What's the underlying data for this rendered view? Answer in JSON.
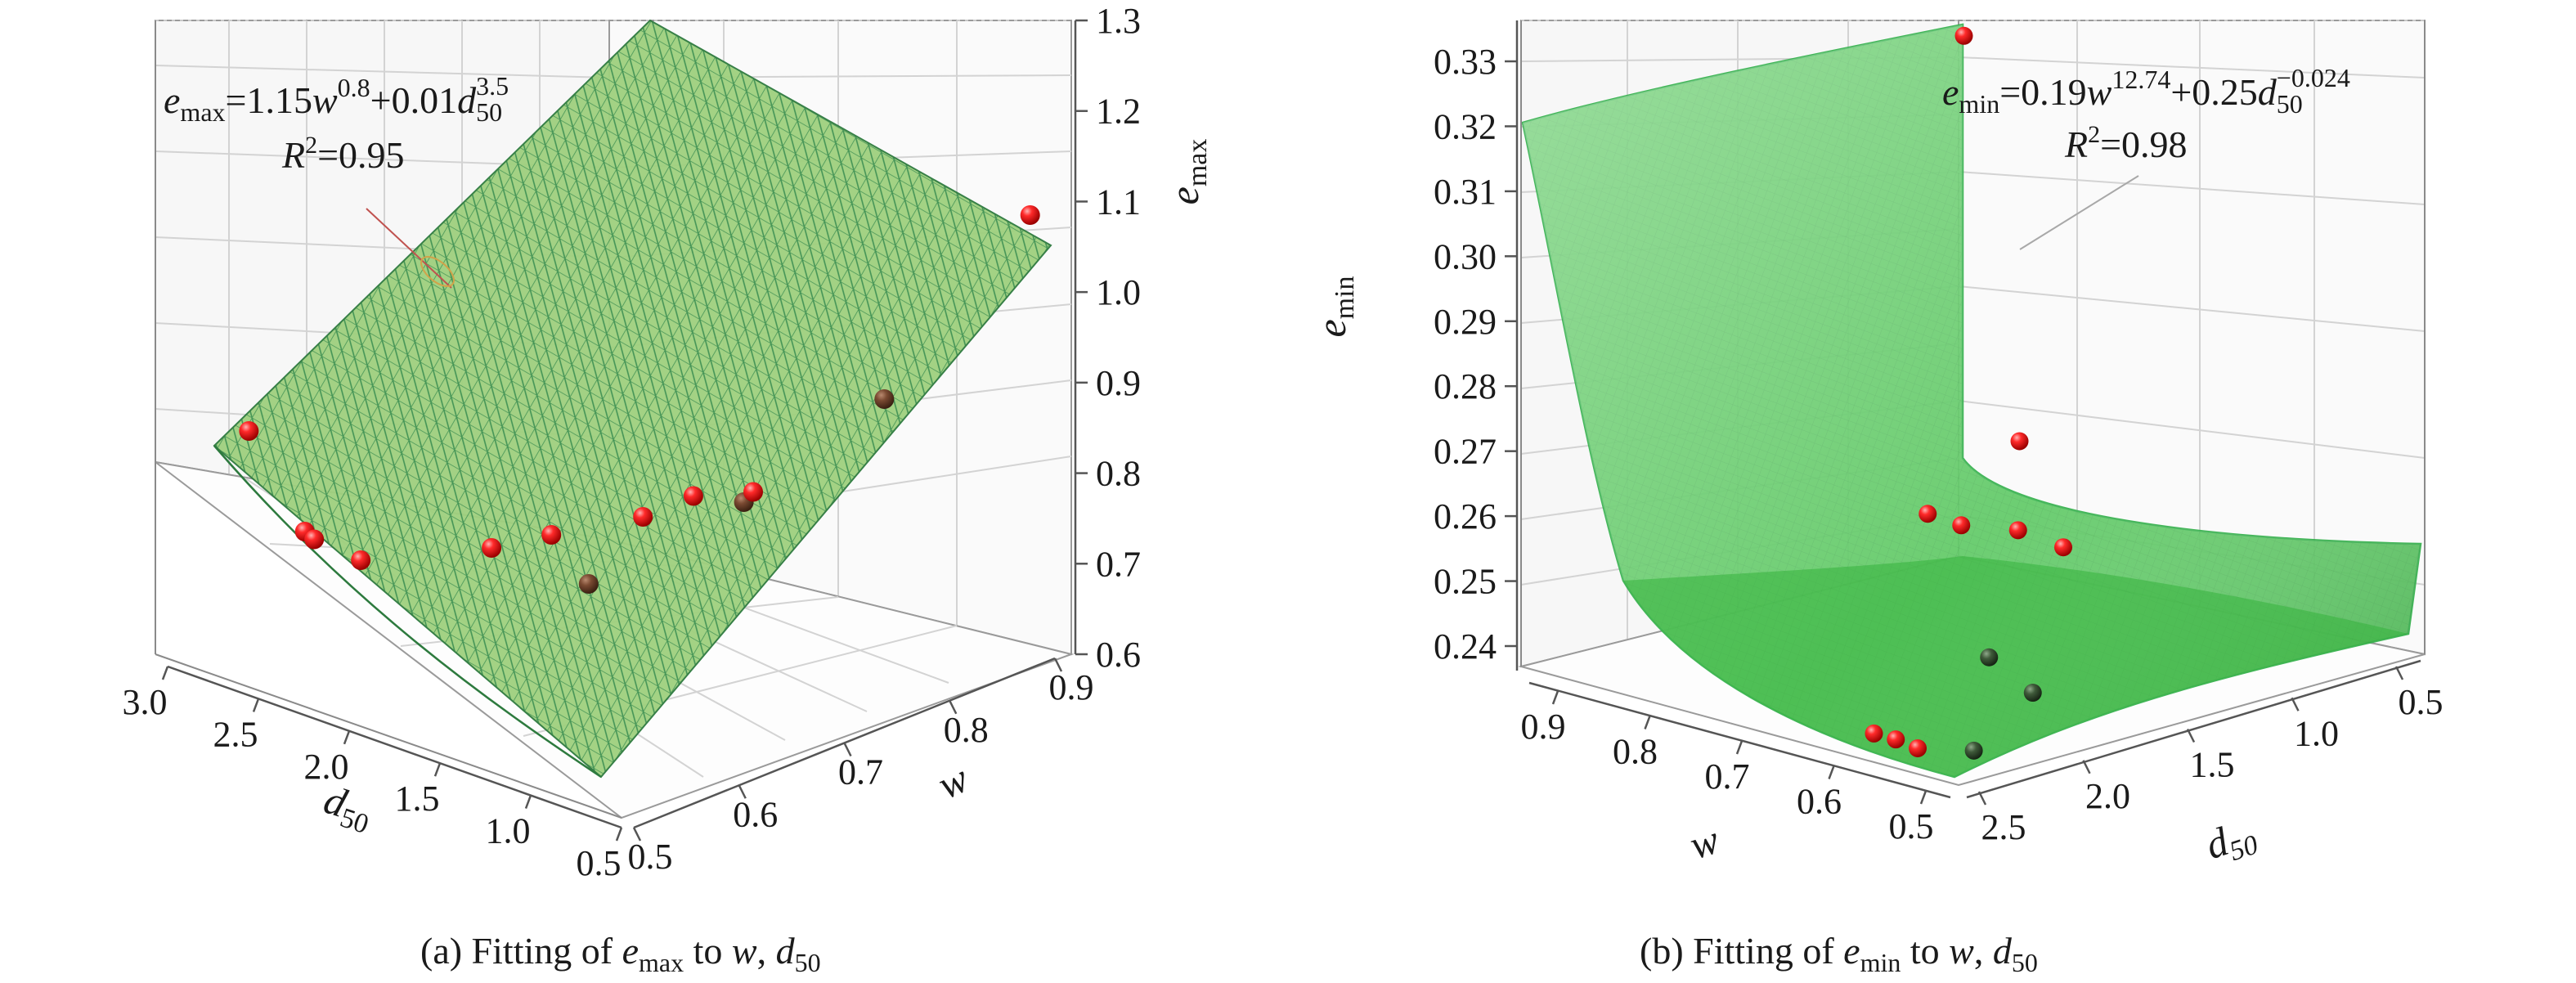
{
  "chart_data": [
    {
      "type": "scatter",
      "panel": "a",
      "caption": "(a) Fitting of e_max to w, d_50",
      "zlabel": "e_max",
      "xlabel": "d_50",
      "ylabel": "w",
      "equation": "e_max=1.15w^0.8+0.01d_50^3.5",
      "r2": "R²=0.95",
      "x_ticks": [
        "3.0",
        "2.5",
        "2.0",
        "1.5",
        "1.0",
        "0.5"
      ],
      "y_ticks": [
        "0.5",
        "0.6",
        "0.7",
        "0.8",
        "0.9"
      ],
      "z_ticks": [
        "0.6",
        "0.7",
        "0.8",
        "0.9",
        "1.0",
        "1.1",
        "1.2",
        "1.3"
      ],
      "xlim": [
        0.5,
        3.0
      ],
      "ylim": [
        0.5,
        0.9
      ],
      "zlim": [
        0.6,
        1.3
      ],
      "surface_color": "#3c9a2c",
      "points": [
        {
          "d50": 2.8,
          "w": 0.55,
          "e": 0.84
        },
        {
          "d50": 2.5,
          "w": 0.55,
          "e": 0.75
        },
        {
          "d50": 2.45,
          "w": 0.55,
          "e": 0.745
        },
        {
          "d50": 2.2,
          "w": 0.55,
          "e": 0.74
        },
        {
          "d50": 1.8,
          "w": 0.6,
          "e": 0.76
        },
        {
          "d50": 1.6,
          "w": 0.62,
          "e": 0.78
        },
        {
          "d50": 1.4,
          "w": 0.62,
          "e": 0.74
        },
        {
          "d50": 1.35,
          "w": 0.66,
          "e": 0.8
        },
        {
          "d50": 1.2,
          "w": 0.68,
          "e": 0.825
        },
        {
          "d50": 1.05,
          "w": 0.7,
          "e": 0.82
        },
        {
          "d50": 1.0,
          "w": 0.7,
          "e": 0.835
        },
        {
          "d50": 0.9,
          "w": 0.8,
          "e": 0.9
        },
        {
          "d50": 0.6,
          "w": 0.88,
          "e": 1.09
        }
      ]
    },
    {
      "type": "scatter",
      "panel": "b",
      "caption": "(b) Fitting of e_min to w, d_50",
      "zlabel": "e_min",
      "xlabel": "w",
      "ylabel": "d50",
      "equation": "e_min=0.19w^12.74+0.25d_50^-0.024",
      "r2": "R²=0.98",
      "x_ticks": [
        "0.9",
        "0.8",
        "0.7",
        "0.6",
        "0.5"
      ],
      "y_ticks": [
        "2.5",
        "2.0",
        "1.5",
        "1.0",
        "0.5"
      ],
      "z_ticks": [
        "0.24",
        "0.25",
        "0.26",
        "0.27",
        "0.28",
        "0.29",
        "0.30",
        "0.31",
        "0.32",
        "0.33"
      ],
      "xlim": [
        0.5,
        0.9
      ],
      "ylim": [
        0.5,
        2.5
      ],
      "zlim": [
        0.235,
        0.335
      ],
      "surface_color": "#3fcf45",
      "points": [
        {
          "w": 0.9,
          "d50": 0.6,
          "e": 0.321
        },
        {
          "w": 0.7,
          "d50": 1.3,
          "e": 0.27
        },
        {
          "w": 0.72,
          "d50": 1.6,
          "e": 0.26
        },
        {
          "w": 0.7,
          "d50": 1.55,
          "e": 0.2585
        },
        {
          "w": 0.68,
          "d50": 1.4,
          "e": 0.257
        },
        {
          "w": 0.66,
          "d50": 1.3,
          "e": 0.254
        },
        {
          "w": 0.6,
          "d50": 1.9,
          "e": 0.245
        },
        {
          "w": 0.56,
          "d50": 1.9,
          "e": 0.241
        },
        {
          "w": 0.62,
          "d50": 2.3,
          "e": 0.2355
        },
        {
          "w": 0.6,
          "d50": 2.3,
          "e": 0.2355
        },
        {
          "w": 0.58,
          "d50": 2.3,
          "e": 0.235
        },
        {
          "w": 0.55,
          "d50": 2.2,
          "e": 0.235
        }
      ]
    }
  ],
  "colors": {
    "point": "#e4141a",
    "point_highlight": "#ff8a8a",
    "surface_a": "#3c9a2c",
    "surface_b": "#3fcf45"
  }
}
